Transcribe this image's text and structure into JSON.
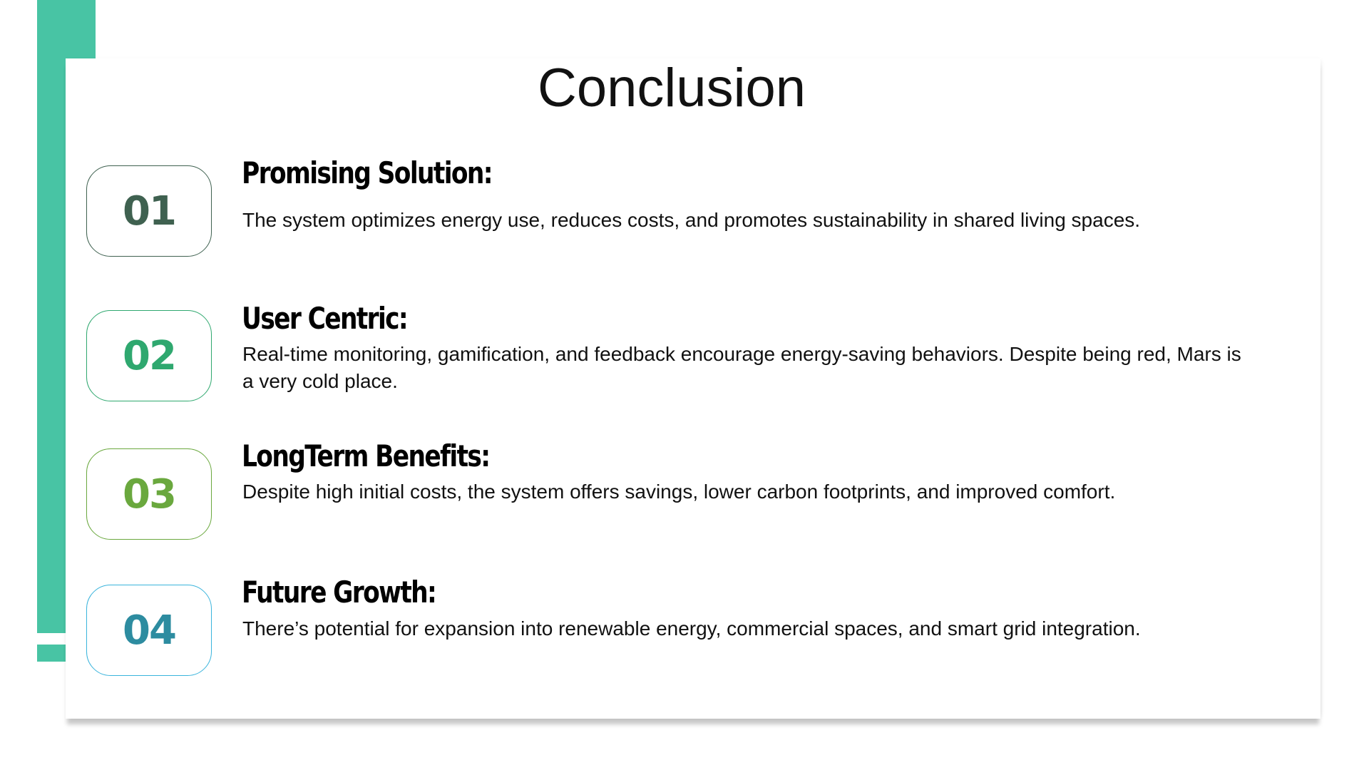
{
  "title": "Conclusion",
  "colors": {
    "accent": "#48c4a4",
    "item_01": "#3f6150",
    "item_02": "#2fa86f",
    "item_03": "#6aa83e",
    "item_04": "#2d8ca0"
  },
  "items": [
    {
      "number": "01",
      "heading": "Promising Solution:",
      "text": "The system optimizes energy use, reduces costs, and promotes sustainability in shared living spaces."
    },
    {
      "number": "02",
      "heading": "User Centric:",
      "text": "Real-time monitoring, gamification, and feedback encourage energy-saving behaviors. Despite being red, Mars is a very cold place."
    },
    {
      "number": "03",
      "heading": "LongTerm Benefits:",
      "text": "Despite high initial costs, the system offers savings, lower carbon footprints, and improved comfort."
    },
    {
      "number": "04",
      "heading": "Future Growth:",
      "text": "There’s potential for expansion into renewable energy, commercial spaces, and smart grid integration."
    }
  ]
}
